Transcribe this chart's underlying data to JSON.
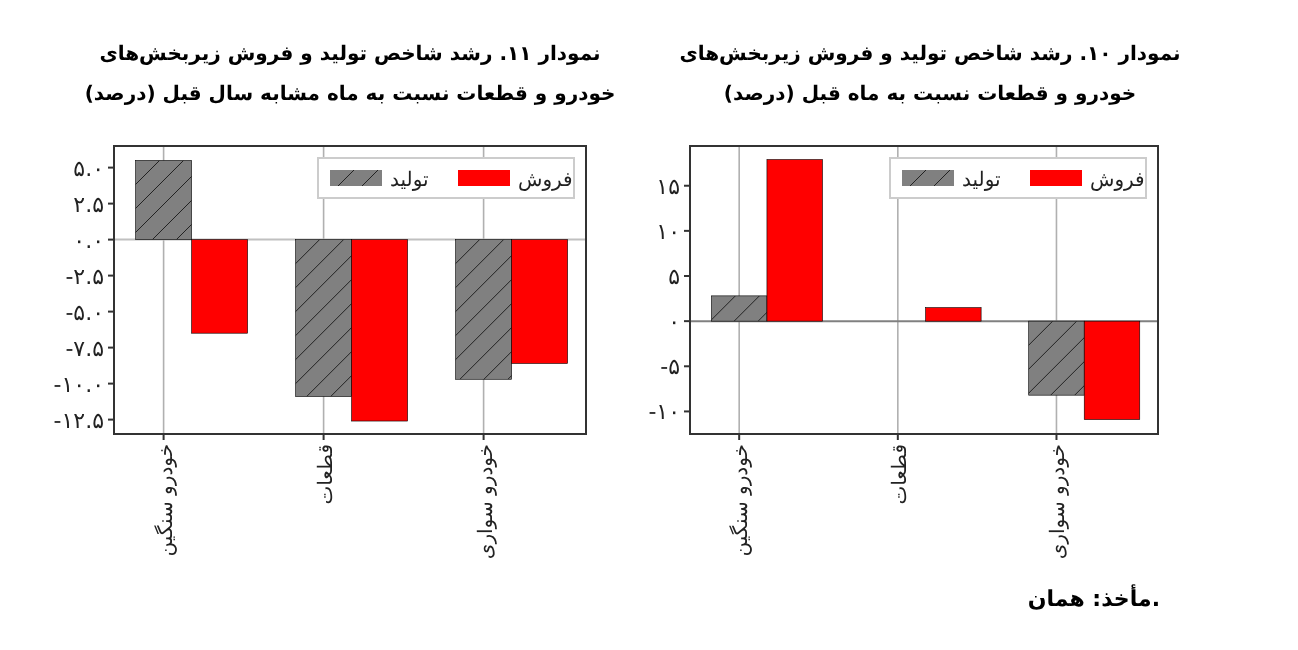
{
  "chart_data": [
    {
      "type": "bar",
      "title": "نمودار ۱۰. رشد شاخص تولید و فروش زیربخش‌های",
      "subtitle": "خودرو و قطعات نسبت به ماه قبل (درصد)",
      "categories": [
        "خودرو سنگین",
        "قطعات",
        "خودرو سواری"
      ],
      "series": [
        {
          "name": "تولید",
          "color": "#808080",
          "values": [
            2.8,
            null,
            -8.2
          ]
        },
        {
          "name": "فروش",
          "color": "#ff0000",
          "values": [
            17.9,
            1.5,
            -10.9
          ]
        }
      ],
      "ylim": [
        -12.5,
        19.4
      ],
      "yticks": [
        {
          "value": 15,
          "label": "۱۵"
        },
        {
          "value": 10,
          "label": "۱۰"
        },
        {
          "value": 5,
          "label": "۵"
        },
        {
          "value": 0,
          "label": "۰"
        },
        {
          "value": -5,
          "label": "-۵"
        },
        {
          "value": -10,
          "label": "-۱۰"
        }
      ],
      "grid": "x",
      "legend": "top right",
      "ref_lines": [
        {
          "axis": "y",
          "value": 0,
          "color": "#808080"
        }
      ],
      "annotations": [
        "مأخذ: همان."
      ]
    },
    {
      "type": "bar",
      "title": "نمودار ۱۱. رشد شاخص تولید و فروش زیربخش‌های",
      "subtitle": "خودرو و قطعات نسبت به ماه مشابه سال قبل (درصد)",
      "categories": [
        "خودرو سنگین",
        "قطعات",
        "خودرو سواری"
      ],
      "series": [
        {
          "name": "تولید",
          "color": "#808080",
          "values": [
            5.5,
            -10.9,
            -9.7
          ]
        },
        {
          "name": "فروش",
          "color": "#ff0000",
          "values": [
            -6.5,
            -12.6,
            -8.6
          ]
        }
      ],
      "ylim": [
        -13.5,
        6.5
      ],
      "yticks": [
        {
          "value": 5,
          "label": "۵.۰"
        },
        {
          "value": 2.5,
          "label": "۲.۵"
        },
        {
          "value": 0,
          "label": "۰.۰"
        },
        {
          "value": -2.5,
          "label": "-۲.۵"
        },
        {
          "value": -5,
          "label": "-۵.۰"
        },
        {
          "value": -7.5,
          "label": "-۷.۵"
        },
        {
          "value": -10,
          "label": "-۱۰.۰"
        },
        {
          "value": -12.5,
          "label": "-۱۲.۵"
        }
      ],
      "grid": "x",
      "legend": "top right",
      "ref_lines": [
        {
          "axis": "y",
          "value": 0,
          "color": "#c0c0c0"
        }
      ]
    }
  ]
}
